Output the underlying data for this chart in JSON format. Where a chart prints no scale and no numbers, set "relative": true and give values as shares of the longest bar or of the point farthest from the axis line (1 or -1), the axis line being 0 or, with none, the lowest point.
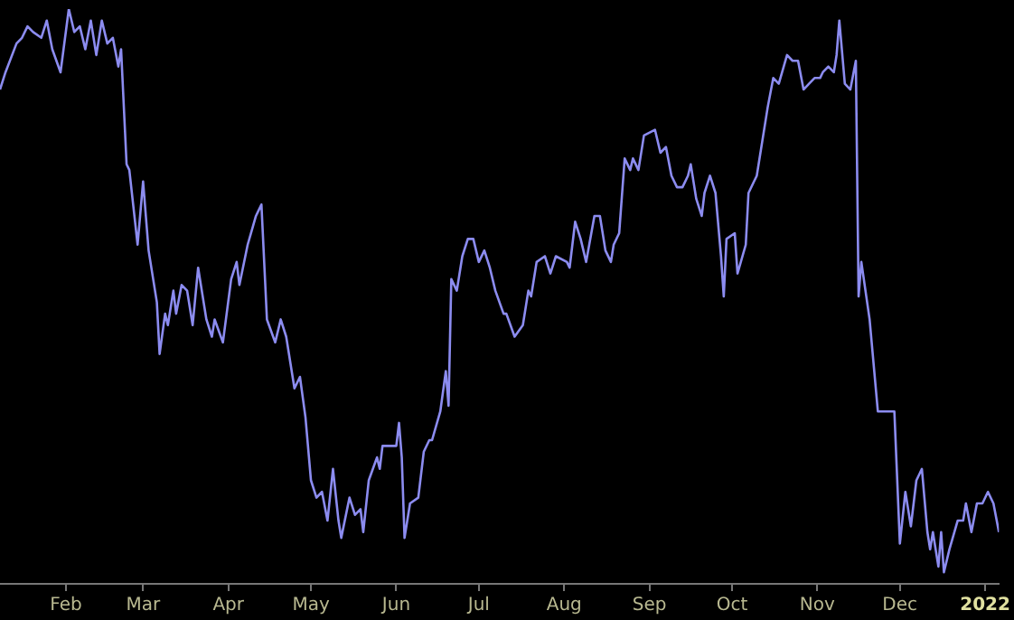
{
  "chart_data": {
    "type": "line",
    "relative": true,
    "legend": false,
    "grid": false,
    "marker": "none",
    "xlim": [
      "2021-01-08",
      "2022-01-06"
    ],
    "xticks": [
      {
        "value": "2021-02-01",
        "label": "Feb"
      },
      {
        "value": "2021-03-01",
        "label": "Mar"
      },
      {
        "value": "2021-04-01",
        "label": "Apr"
      },
      {
        "value": "2021-05-01",
        "label": "May"
      },
      {
        "value": "2021-06-01",
        "label": "Jun"
      },
      {
        "value": "2021-07-01",
        "label": "Jul"
      },
      {
        "value": "2021-08-01",
        "label": "Aug"
      },
      {
        "value": "2021-09-01",
        "label": "Sep"
      },
      {
        "value": "2021-10-01",
        "label": "Oct"
      },
      {
        "value": "2021-11-01",
        "label": "Nov"
      },
      {
        "value": "2021-12-01",
        "label": "Dec"
      },
      {
        "value": "2022-01-01",
        "label": "2022"
      }
    ],
    "x": [
      "2021-01-08",
      "2021-01-10",
      "2021-01-14",
      "2021-01-16",
      "2021-01-18",
      "2021-01-20",
      "2021-01-23",
      "2021-01-25",
      "2021-01-27",
      "2021-01-30",
      "2021-02-02",
      "2021-02-04",
      "2021-02-06",
      "2021-02-08",
      "2021-02-10",
      "2021-02-12",
      "2021-02-14",
      "2021-02-16",
      "2021-02-18",
      "2021-02-20",
      "2021-02-21",
      "2021-02-23",
      "2021-02-24",
      "2021-02-27",
      "2021-03-01",
      "2021-03-03",
      "2021-03-06",
      "2021-03-07",
      "2021-03-09",
      "2021-03-10",
      "2021-03-12",
      "2021-03-13",
      "2021-03-15",
      "2021-03-17",
      "2021-03-19",
      "2021-03-21",
      "2021-03-24",
      "2021-03-26",
      "2021-03-27",
      "2021-03-30",
      "2021-04-02",
      "2021-04-04",
      "2021-04-05",
      "2021-04-08",
      "2021-04-11",
      "2021-04-12",
      "2021-04-13",
      "2021-04-15",
      "2021-04-18",
      "2021-04-20",
      "2021-04-22",
      "2021-04-25",
      "2021-04-27",
      "2021-04-29",
      "2021-05-01",
      "2021-05-03",
      "2021-05-05",
      "2021-05-07",
      "2021-05-09",
      "2021-05-11",
      "2021-05-12",
      "2021-05-15",
      "2021-05-17",
      "2021-05-19",
      "2021-05-20",
      "2021-05-22",
      "2021-05-25",
      "2021-05-26",
      "2021-05-27",
      "2021-05-30",
      "2021-06-01",
      "2021-06-02",
      "2021-06-03",
      "2021-06-04",
      "2021-06-06",
      "2021-06-09",
      "2021-06-11",
      "2021-06-13",
      "2021-06-14",
      "2021-06-17",
      "2021-06-19",
      "2021-06-20",
      "2021-06-21",
      "2021-06-23",
      "2021-06-25",
      "2021-06-27",
      "2021-06-29",
      "2021-07-01",
      "2021-07-03",
      "2021-07-05",
      "2021-07-07",
      "2021-07-10",
      "2021-07-11",
      "2021-07-14",
      "2021-07-17",
      "2021-07-19",
      "2021-07-20",
      "2021-07-22",
      "2021-07-25",
      "2021-07-27",
      "2021-07-29",
      "2021-08-02",
      "2021-08-03",
      "2021-08-05",
      "2021-08-07",
      "2021-08-09",
      "2021-08-12",
      "2021-08-14",
      "2021-08-16",
      "2021-08-18",
      "2021-08-19",
      "2021-08-21",
      "2021-08-23",
      "2021-08-25",
      "2021-08-26",
      "2021-08-28",
      "2021-08-30",
      "2021-09-03",
      "2021-09-05",
      "2021-09-07",
      "2021-09-09",
      "2021-09-11",
      "2021-09-13",
      "2021-09-15",
      "2021-09-16",
      "2021-09-18",
      "2021-09-20",
      "2021-09-21",
      "2021-09-23",
      "2021-09-25",
      "2021-09-27",
      "2021-09-28",
      "2021-09-29",
      "2021-10-02",
      "2021-10-03",
      "2021-10-06",
      "2021-10-07",
      "2021-10-09",
      "2021-10-10",
      "2021-10-14",
      "2021-10-16",
      "2021-10-18",
      "2021-10-21",
      "2021-10-23",
      "2021-10-25",
      "2021-10-27",
      "2021-10-29",
      "2021-10-31",
      "2021-11-02",
      "2021-11-03",
      "2021-11-05",
      "2021-11-07",
      "2021-11-08",
      "2021-11-09",
      "2021-11-11",
      "2021-11-13",
      "2021-11-15",
      "2021-11-16",
      "2021-11-17",
      "2021-11-20",
      "2021-11-23",
      "2021-11-25",
      "2021-11-29",
      "2021-12-01",
      "2021-12-03",
      "2021-12-05",
      "2021-12-07",
      "2021-12-09",
      "2021-12-11",
      "2021-12-12",
      "2021-12-13",
      "2021-12-15",
      "2021-12-16",
      "2021-12-17",
      "2021-12-19",
      "2021-12-22",
      "2021-12-24",
      "2021-12-25",
      "2021-12-27",
      "2021-12-29",
      "2021-12-31",
      "2022-01-02",
      "2022-01-04",
      "2022-01-06"
    ],
    "series": [
      {
        "color": "#8c8cf0",
        "values": [
          0.86,
          0.89,
          0.94,
          0.95,
          0.97,
          0.96,
          0.95,
          0.98,
          0.93,
          0.89,
          1.0,
          0.96,
          0.97,
          0.93,
          0.98,
          0.92,
          0.98,
          0.94,
          0.95,
          0.9,
          0.93,
          0.73,
          0.72,
          0.59,
          0.7,
          0.58,
          0.49,
          0.4,
          0.47,
          0.45,
          0.51,
          0.47,
          0.52,
          0.51,
          0.45,
          0.55,
          0.46,
          0.43,
          0.46,
          0.42,
          0.53,
          0.56,
          0.52,
          0.59,
          0.64,
          0.65,
          0.66,
          0.46,
          0.42,
          0.46,
          0.43,
          0.34,
          0.36,
          0.29,
          0.18,
          0.15,
          0.16,
          0.11,
          0.2,
          0.11,
          0.08,
          0.15,
          0.12,
          0.13,
          0.09,
          0.18,
          0.22,
          0.2,
          0.24,
          0.24,
          0.24,
          0.28,
          0.22,
          0.08,
          0.14,
          0.15,
          0.23,
          0.25,
          0.25,
          0.3,
          0.37,
          0.31,
          0.53,
          0.51,
          0.57,
          0.6,
          0.6,
          0.56,
          0.58,
          0.55,
          0.51,
          0.47,
          0.47,
          0.43,
          0.45,
          0.51,
          0.5,
          0.56,
          0.57,
          0.54,
          0.57,
          0.56,
          0.55,
          0.63,
          0.6,
          0.56,
          0.64,
          0.64,
          0.58,
          0.56,
          0.59,
          0.61,
          0.74,
          0.72,
          0.74,
          0.72,
          0.78,
          0.79,
          0.75,
          0.76,
          0.71,
          0.69,
          0.69,
          0.71,
          0.73,
          0.67,
          0.64,
          0.68,
          0.71,
          0.68,
          0.57,
          0.5,
          0.6,
          0.61,
          0.54,
          0.59,
          0.68,
          0.7,
          0.71,
          0.83,
          0.88,
          0.87,
          0.92,
          0.91,
          0.91,
          0.86,
          0.87,
          0.88,
          0.88,
          0.89,
          0.9,
          0.89,
          0.92,
          0.98,
          0.87,
          0.86,
          0.91,
          0.5,
          0.56,
          0.46,
          0.3,
          0.3,
          0.3,
          0.07,
          0.16,
          0.1,
          0.18,
          0.2,
          0.09,
          0.06,
          0.09,
          0.03,
          0.09,
          0.02,
          0.06,
          0.11,
          0.11,
          0.14,
          0.09,
          0.14,
          0.14,
          0.16,
          0.14,
          0.09
        ]
      }
    ]
  }
}
